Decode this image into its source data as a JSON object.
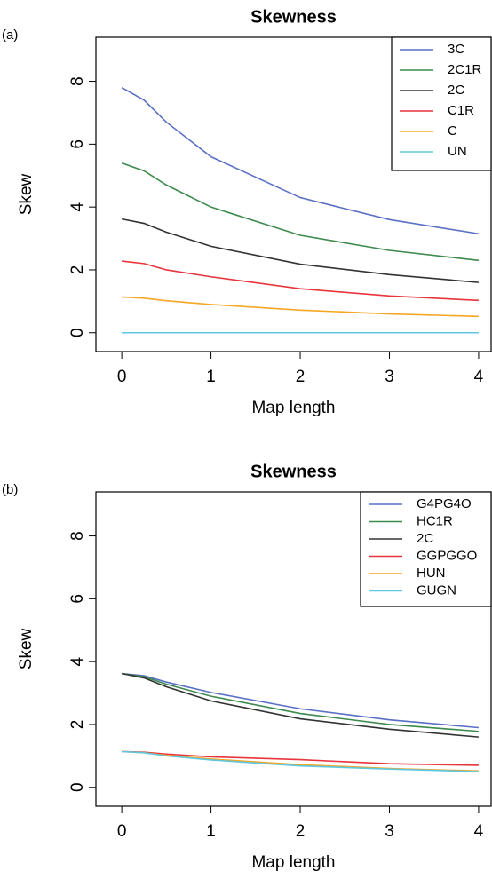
{
  "chart_data": [
    {
      "type": "line",
      "panel_label": "(a)",
      "title": "Skewness",
      "x_label": "Map length",
      "y_label": "Skew",
      "x": [
        0,
        0.25,
        0.5,
        1,
        2,
        3,
        4
      ],
      "xlim": [
        -0.29,
        4.14
      ],
      "xticks": [
        0,
        1,
        2,
        3,
        4
      ],
      "ylim": [
        -0.6,
        9.4
      ],
      "yticks": [
        0,
        2,
        4,
        6,
        8
      ],
      "legend": "top-right",
      "series": [
        {
          "name": "3C",
          "color": "#5a6fc6",
          "values": [
            7.8,
            7.4,
            6.7,
            5.6,
            4.3,
            3.6,
            3.15
          ]
        },
        {
          "name": "2C1R",
          "color": "#3c8a4c",
          "values": [
            5.4,
            5.15,
            4.7,
            4.0,
            3.1,
            2.62,
            2.3
          ]
        },
        {
          "name": "2C",
          "color": "#333333",
          "values": [
            3.62,
            3.48,
            3.2,
            2.75,
            2.18,
            1.85,
            1.6
          ]
        },
        {
          "name": "C1R",
          "color": "#e8343c",
          "values": [
            2.28,
            2.2,
            2.0,
            1.78,
            1.4,
            1.17,
            1.03
          ]
        },
        {
          "name": "C",
          "color": "#f5a623",
          "values": [
            1.14,
            1.1,
            1.02,
            0.9,
            0.72,
            0.6,
            0.52
          ]
        },
        {
          "name": "UN",
          "color": "#5ec8e0",
          "values": [
            0,
            0,
            0,
            0,
            0,
            0,
            0
          ]
        }
      ]
    },
    {
      "type": "line",
      "panel_label": "(b)",
      "title": "Skewness",
      "x_label": "Map length",
      "y_label": "Skew",
      "x": [
        0,
        0.25,
        0.5,
        1,
        2,
        3,
        4
      ],
      "xlim": [
        -0.29,
        4.14
      ],
      "xticks": [
        0,
        1,
        2,
        3,
        4
      ],
      "ylim": [
        -0.6,
        9.4
      ],
      "yticks": [
        0,
        2,
        4,
        6,
        8
      ],
      "legend": "top-right",
      "series": [
        {
          "name": "G4PG4O",
          "color": "#5a6fc6",
          "values": [
            3.62,
            3.55,
            3.35,
            3.02,
            2.5,
            2.15,
            1.9
          ]
        },
        {
          "name": "HC1R",
          "color": "#3c8a4c",
          "values": [
            3.62,
            3.52,
            3.28,
            2.9,
            2.35,
            2.0,
            1.78
          ]
        },
        {
          "name": "2C",
          "color": "#333333",
          "values": [
            3.62,
            3.48,
            3.2,
            2.75,
            2.18,
            1.85,
            1.6
          ]
        },
        {
          "name": "GGPGGO",
          "color": "#e8343c",
          "values": [
            1.14,
            1.12,
            1.06,
            0.97,
            0.88,
            0.75,
            0.7
          ]
        },
        {
          "name": "HUN",
          "color": "#f5a623",
          "values": [
            1.14,
            1.1,
            1.02,
            0.9,
            0.72,
            0.6,
            0.52
          ]
        },
        {
          "name": "GUGN",
          "color": "#5ec8e0",
          "values": [
            1.14,
            1.1,
            1.0,
            0.87,
            0.68,
            0.58,
            0.5
          ]
        }
      ]
    }
  ]
}
